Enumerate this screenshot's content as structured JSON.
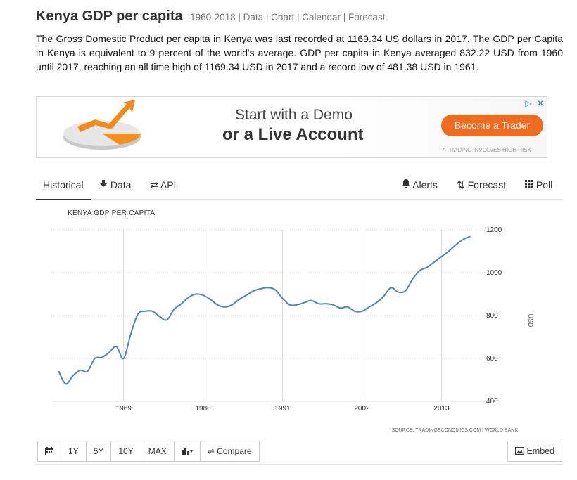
{
  "header": {
    "title": "Kenya GDP per capita",
    "range": "1960-2018",
    "links": [
      "Data",
      "Chart",
      "Calendar",
      "Forecast"
    ]
  },
  "description": "The Gross Domestic Product per capita in Kenya was last recorded at 1169.34 US dollars in 2017. The GDP per Capita in Kenya is equivalent to 9 percent of the world's average. GDP per capita in Kenya averaged 832.22 USD from 1960 until 2017, reaching an all time high of 1169.34 USD in 2017 and a record low of 481.38 USD in 1961.",
  "ad": {
    "line1": "Start with a Demo",
    "line2": "or a Live Account",
    "button": "Become a Trader",
    "note": "* TRADING INVOLVES HIGH RISK",
    "colors": {
      "button": "#ef6b1f"
    }
  },
  "tabs": {
    "left": [
      {
        "label": "Historical",
        "icon": ""
      },
      {
        "label": "Data",
        "icon": "download-icon"
      },
      {
        "label": "API",
        "icon": "swap-icon"
      }
    ],
    "right": [
      {
        "label": "Alerts",
        "icon": "bell-icon"
      },
      {
        "label": "Forecast",
        "icon": "sort-arrows-icon"
      },
      {
        "label": "Poll",
        "icon": "grid-icon"
      }
    ]
  },
  "chart_data": {
    "type": "line",
    "title": "KENYA GDP PER CAPITA",
    "ylabel": "USD",
    "xlabel": "",
    "x_ticks": [
      "1969",
      "1980",
      "1991",
      "2002",
      "2013"
    ],
    "y_ticks": [
      400,
      600,
      800,
      1000,
      1200
    ],
    "ylim": [
      400,
      1200
    ],
    "xlim": [
      1959,
      2019
    ],
    "grid": true,
    "source": "SOURCE: TRADINGECONOMICS.COM | WORLD BANK",
    "line_color": "#4a86b6",
    "series": [
      {
        "x": [
          1960,
          1961,
          1962,
          1963,
          1964,
          1965,
          1966,
          1967,
          1968,
          1969,
          1970,
          1971,
          1972,
          1973,
          1974,
          1975,
          1976,
          1977,
          1978,
          1979,
          1980,
          1981,
          1982,
          1983,
          1984,
          1985,
          1986,
          1987,
          1988,
          1989,
          1990,
          1991,
          1992,
          1993,
          1994,
          1995,
          1996,
          1997,
          1998,
          1999,
          2000,
          2001,
          2002,
          2003,
          2004,
          2005,
          2006,
          2007,
          2008,
          2009,
          2010,
          2011,
          2012,
          2013,
          2014,
          2015,
          2016,
          2017
        ],
        "y": [
          540,
          481,
          520,
          545,
          540,
          600,
          605,
          628,
          655,
          600,
          715,
          808,
          820,
          820,
          795,
          780,
          830,
          855,
          885,
          900,
          895,
          875,
          850,
          840,
          850,
          875,
          895,
          915,
          925,
          930,
          920,
          880,
          850,
          850,
          860,
          870,
          855,
          855,
          850,
          835,
          840,
          820,
          820,
          840,
          860,
          890,
          930,
          910,
          915,
          970,
          1010,
          1025,
          1050,
          1075,
          1100,
          1130,
          1155,
          1169.34
        ]
      }
    ]
  },
  "toolbar": {
    "buttons": [
      "1Y",
      "5Y",
      "10Y",
      "MAX"
    ],
    "compare": "Compare",
    "embed": "Embed"
  }
}
